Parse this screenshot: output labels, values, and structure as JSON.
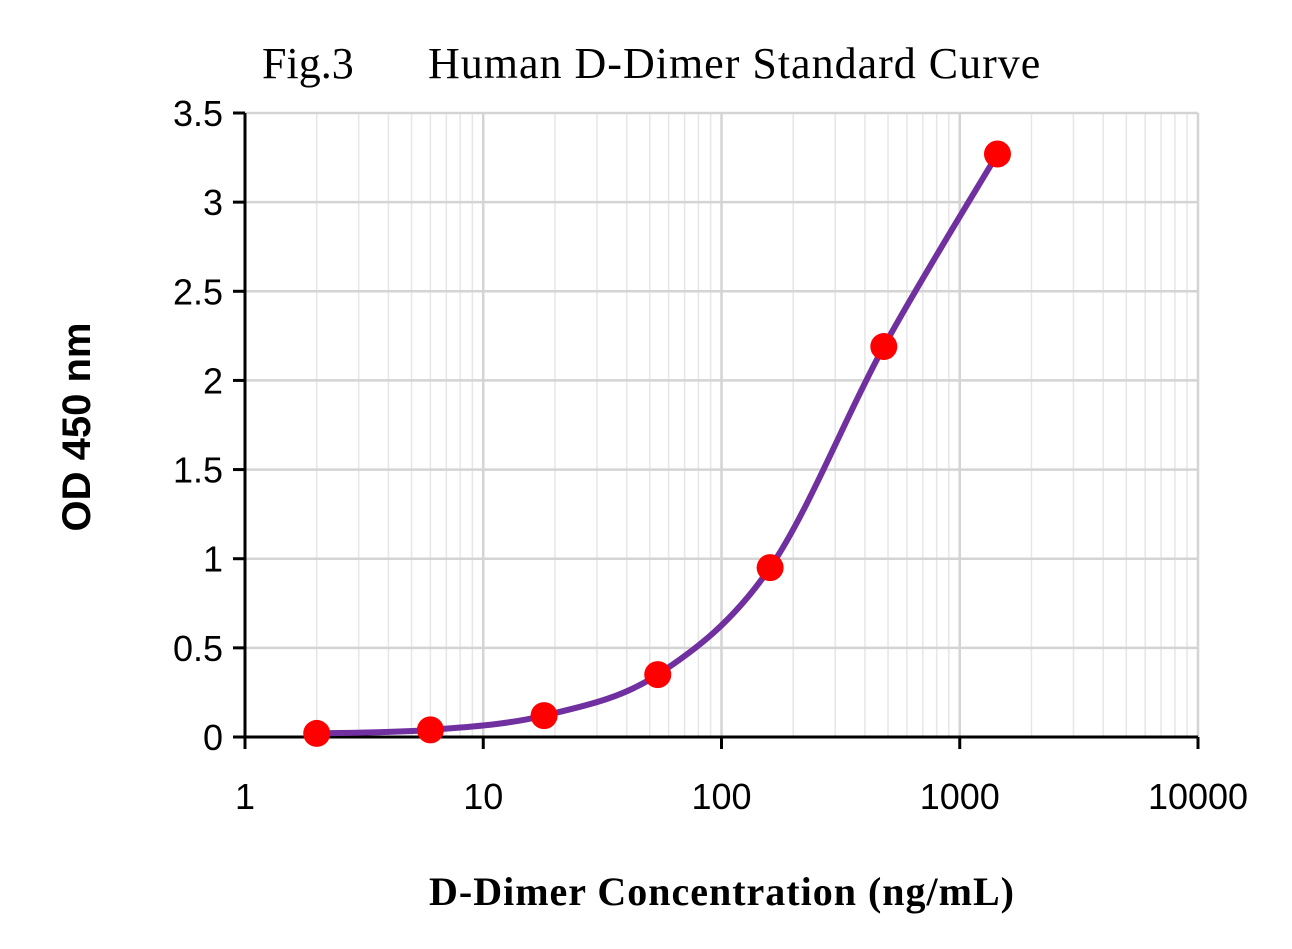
{
  "chart_data": {
    "type": "scatter",
    "title_prefix": "Fig.3",
    "title": "Human D-Dimer Standard Curve",
    "xlabel": "D-Dimer Concentration (ng/mL)",
    "ylabel": "OD 450 nm",
    "x_scale": "log",
    "xlim": [
      1,
      10000
    ],
    "ylim": [
      0,
      3.5
    ],
    "x_ticks": [
      1,
      10,
      100,
      1000,
      10000
    ],
    "x_tick_labels": [
      "1",
      "10",
      "100",
      "1000",
      "10000"
    ],
    "y_ticks": [
      0,
      0.5,
      1,
      1.5,
      2,
      2.5,
      3,
      3.5
    ],
    "y_tick_labels": [
      "0",
      "0.5",
      "1",
      "1.5",
      "2",
      "2.5",
      "3",
      "3.5"
    ],
    "grid": true,
    "legend": false,
    "series": [
      {
        "x": [
          2,
          6,
          18,
          54,
          160,
          480,
          1440
        ],
        "y": [
          0.02,
          0.04,
          0.12,
          0.35,
          0.95,
          2.19,
          3.27
        ],
        "marker": "circle",
        "marker_color": "#ff0000",
        "line": "smooth",
        "line_color": "#7030a0"
      }
    ]
  }
}
